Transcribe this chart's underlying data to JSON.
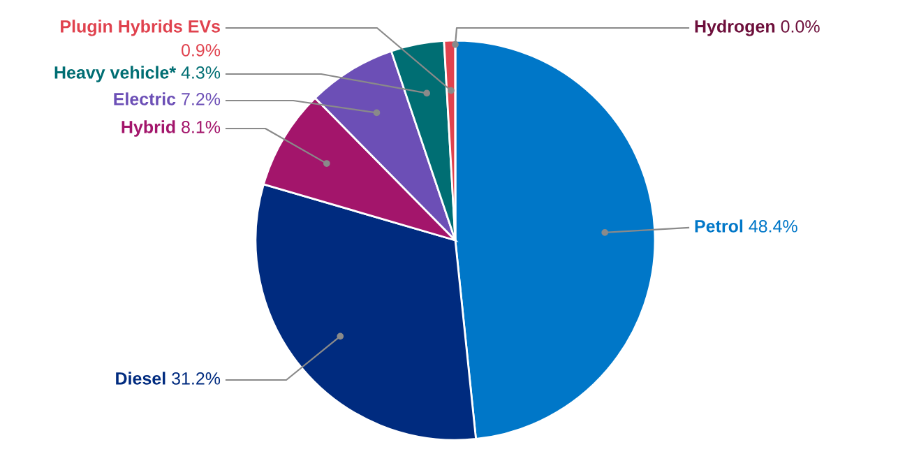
{
  "chart_data": {
    "type": "pie",
    "categories": [
      "Petrol",
      "Diesel",
      "Hybrid",
      "Electric",
      "Heavy vehicle*",
      "Plugin Hybrids EVs",
      "Hydrogen"
    ],
    "values": [
      48.4,
      31.2,
      8.1,
      7.2,
      4.3,
      0.9,
      0.0
    ],
    "colors": [
      "#0077c8",
      "#002b7f",
      "#a3156b",
      "#6c4fb6",
      "#006e73",
      "#e0424e",
      "#6d0f3b"
    ],
    "value_labels": [
      "48.4%",
      "31.2%",
      "8.1%",
      "7.2%",
      "4.3%",
      "0.9%",
      "0.0%"
    ]
  }
}
